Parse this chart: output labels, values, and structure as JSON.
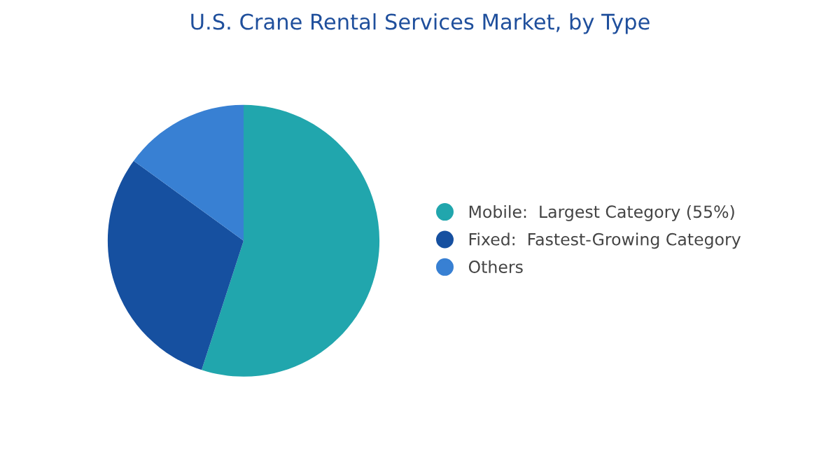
{
  "chart_data": {
    "type": "pie",
    "title": "U.S. Crane Rental Services Market, by Type",
    "categories": [
      "Mobile:  Largest Category (55%)",
      "Fixed:  Fastest-Growing Category",
      "Others"
    ],
    "values": [
      55,
      30,
      15
    ],
    "colors": [
      "#21a6ad",
      "#1650a0",
      "#3880d3"
    ],
    "legend": "right"
  }
}
